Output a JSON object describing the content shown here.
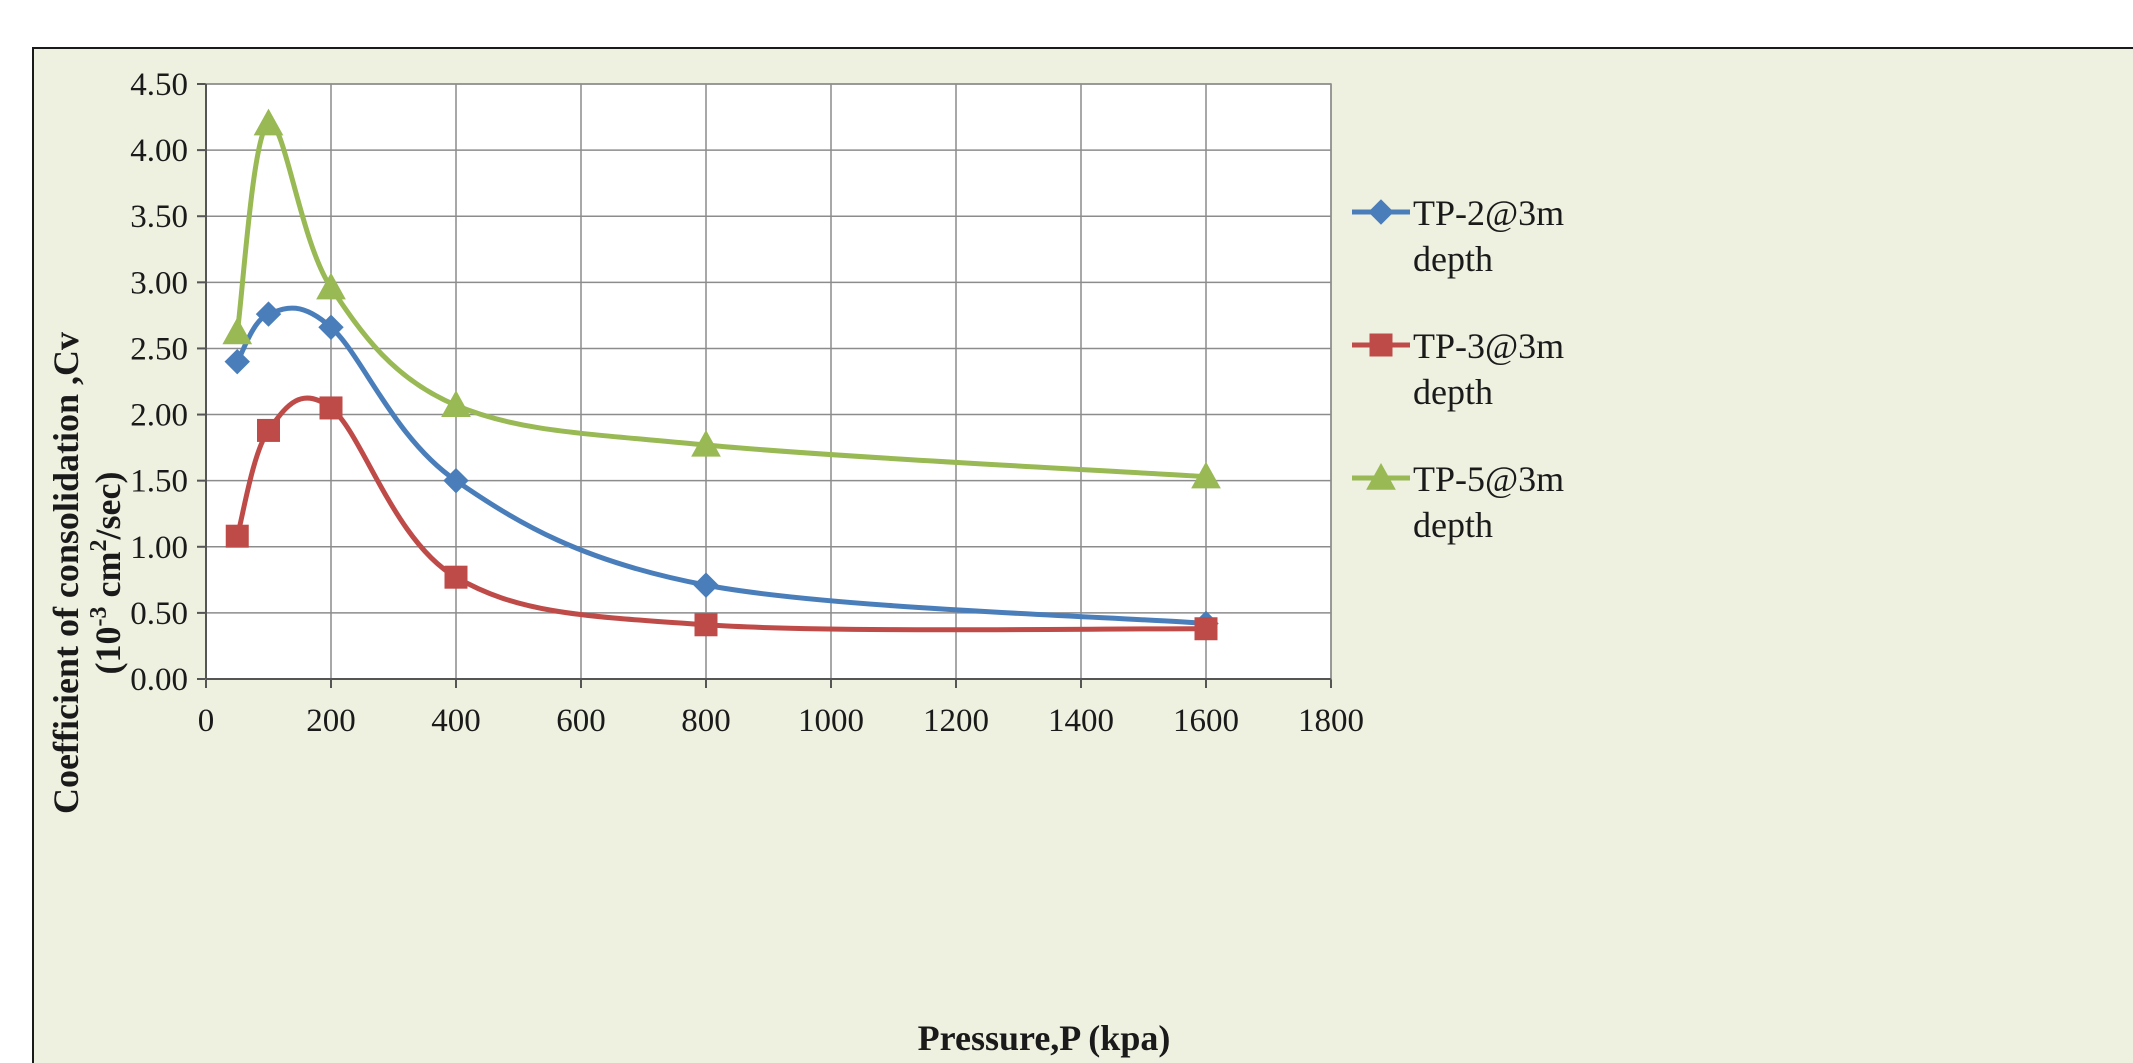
{
  "chart_data": {
    "type": "line",
    "xlabel": "Pressure,P (kpa)",
    "ylabel_line1": "Coefficient  of  consolidation ,Cv",
    "ylabel_line2_prefix": "(10",
    "ylabel_line2_exp1": "-3",
    "ylabel_line2_mid": " cm",
    "ylabel_line2_exp2": "2",
    "ylabel_line2_suffix": "/sec)",
    "xlim": [
      0,
      1800
    ],
    "ylim": [
      0,
      4.5
    ],
    "x_ticks": [
      "0",
      "200",
      "400",
      "600",
      "800",
      "1000",
      "1200",
      "1400",
      "1600",
      "1800"
    ],
    "y_ticks": [
      "0.00",
      "0.50",
      "1.00",
      "1.50",
      "2.00",
      "2.50",
      "3.00",
      "3.50",
      "4.00",
      "4.50"
    ],
    "grid": true,
    "legend_position": "right",
    "series": [
      {
        "name_line1": "TP-2@3m",
        "name_line2": "depth",
        "color": "#4a7ebb",
        "marker": "diamond",
        "x": [
          50,
          100,
          200,
          400,
          800,
          1600
        ],
        "y": [
          2.4,
          2.76,
          2.66,
          1.5,
          0.71,
          0.42
        ]
      },
      {
        "name_line1": "TP-3@3m",
        "name_line2": "depth",
        "color": "#be4b48",
        "marker": "square",
        "x": [
          50,
          100,
          200,
          400,
          800,
          1600
        ],
        "y": [
          1.08,
          1.88,
          2.05,
          0.77,
          0.41,
          0.38
        ]
      },
      {
        "name_line1": "TP-5@3m",
        "name_line2": "depth",
        "color": "#98b954",
        "marker": "triangle",
        "x": [
          50,
          100,
          200,
          400,
          800,
          1600
        ],
        "y": [
          2.62,
          4.2,
          2.96,
          2.07,
          1.77,
          1.53
        ]
      }
    ]
  }
}
